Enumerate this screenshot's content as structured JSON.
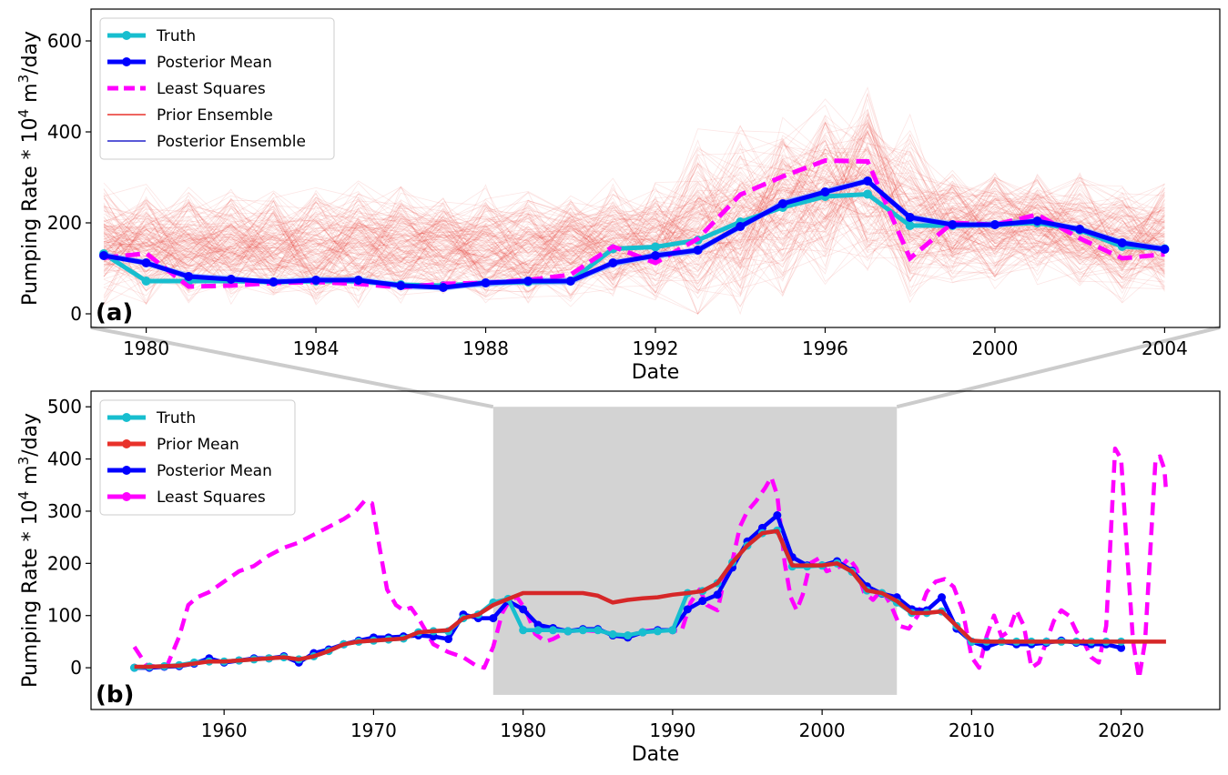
{
  "chart_data": [
    {
      "panel_label": "(a)",
      "type": "line",
      "xlabel": "Date",
      "ylabel_main": "Pumping Rate * 10",
      "ylabel_exp": "4",
      "ylabel_unit": " m",
      "ylabel_unit_exp": "3",
      "ylabel_tail": "/day",
      "xlim": [
        1978.7,
        2005.3
      ],
      "ylim": [
        -30,
        670
      ],
      "xticks": [
        1980,
        1984,
        1988,
        1992,
        1996,
        2000,
        2004
      ],
      "yticks": [
        0,
        200,
        400,
        600
      ],
      "legend": {
        "placement": "upper-left",
        "entries": [
          {
            "label": "Truth",
            "color": "#17becf",
            "style": "solid-marker",
            "width": 5
          },
          {
            "label": "Posterior Mean",
            "color": "#0000ff",
            "style": "solid-marker",
            "width": 5
          },
          {
            "label": "Least Squares",
            "color": "#ff00ff",
            "style": "dashed",
            "width": 5
          },
          {
            "label": "Prior Ensemble",
            "color": "#e8322b",
            "style": "solid",
            "width": 1.5
          },
          {
            "label": "Posterior Ensemble",
            "color": "#2222cc",
            "style": "solid",
            "width": 1.5
          }
        ]
      },
      "series": [
        {
          "name": "Truth",
          "color": "#17becf",
          "x": [
            1979,
            1980,
            1981,
            1982,
            1983,
            1984,
            1985,
            1986,
            1987,
            1988,
            1989,
            1990,
            1991,
            1992,
            1993,
            1994,
            1995,
            1996,
            1997,
            1998,
            1999,
            2000,
            2001,
            2002,
            2003,
            2004
          ],
          "y": [
            132,
            72,
            72,
            72,
            70,
            72,
            72,
            64,
            62,
            68,
            70,
            72,
            143,
            147,
            162,
            202,
            234,
            258,
            263,
            194,
            194,
            196,
            200,
            184,
            148,
            143
          ]
        },
        {
          "name": "Posterior Mean",
          "color": "#0000ff",
          "x": [
            1979,
            1980,
            1981,
            1982,
            1983,
            1984,
            1985,
            1986,
            1987,
            1988,
            1989,
            1990,
            1991,
            1992,
            1993,
            1994,
            1995,
            1996,
            1997,
            1998,
            1999,
            2000,
            2001,
            2002,
            2003,
            2004
          ],
          "y": [
            128,
            112,
            82,
            76,
            70,
            74,
            74,
            62,
            58,
            68,
            72,
            72,
            112,
            128,
            140,
            192,
            242,
            268,
            292,
            212,
            196,
            196,
            204,
            186,
            156,
            142
          ]
        },
        {
          "name": "Least Squares",
          "color": "#ff00ff",
          "x": [
            1979,
            1980,
            1981,
            1982,
            1983,
            1984,
            1985,
            1986,
            1987,
            1988,
            1989,
            1990,
            1991,
            1992,
            1993,
            1994,
            1995,
            1996,
            1997,
            1998,
            1999,
            2000,
            2001,
            2002,
            2003,
            2004
          ],
          "y": [
            123,
            133,
            60,
            62,
            68,
            70,
            66,
            58,
            66,
            68,
            74,
            86,
            148,
            112,
            165,
            262,
            302,
            337,
            335,
            122,
            200,
            196,
            218,
            166,
            122,
            131
          ]
        }
      ],
      "ensemble": {
        "prior_member_count": 160,
        "prior_spread": 80,
        "prior_center": [
          150,
          150,
          150,
          150,
          150,
          150,
          150,
          150,
          150,
          150,
          150,
          150,
          160,
          160,
          170,
          200,
          230,
          260,
          280,
          200,
          190,
          190,
          200,
          185,
          160,
          160
        ],
        "prior_color": "#e8322b",
        "posterior_color": "#7fb0ff"
      }
    },
    {
      "panel_label": "(b)",
      "type": "line",
      "xlabel": "Date",
      "ylabel_main": "Pumping Rate * 10",
      "ylabel_exp": "4",
      "ylabel_unit": " m",
      "ylabel_unit_exp": "3",
      "ylabel_tail": "/day",
      "xlim": [
        1951.1,
        2026.6
      ],
      "ylim": [
        -80,
        530
      ],
      "xticks": [
        1960,
        1970,
        1980,
        1990,
        2000,
        2010,
        2020
      ],
      "yticks": [
        0,
        100,
        200,
        300,
        400,
        500
      ],
      "highlight_region": {
        "x": [
          1978,
          2005
        ],
        "y": [
          -52,
          500
        ],
        "color": "#d3d3d3"
      },
      "legend": {
        "placement": "upper-left",
        "entries": [
          {
            "label": "Truth",
            "color": "#17becf",
            "style": "solid-marker",
            "width": 5
          },
          {
            "label": "Prior Mean",
            "color": "#e8322b",
            "style": "solid-marker",
            "width": 5
          },
          {
            "label": "Posterior Mean",
            "color": "#0000ff",
            "style": "solid-marker",
            "width": 5
          },
          {
            "label": "Least Squares",
            "color": "#ff00ff",
            "style": "solid-marker",
            "width": 5
          }
        ]
      },
      "series": [
        {
          "name": "Posterior Mean",
          "color": "#0000ff",
          "marker": true,
          "x": [
            1954,
            1955,
            1956,
            1957,
            1958,
            1959,
            1960,
            1961,
            1962,
            1963,
            1964,
            1965,
            1966,
            1967,
            1968,
            1969,
            1970,
            1971,
            1972,
            1973,
            1974,
            1975,
            1976,
            1977,
            1978,
            1979,
            1980,
            1981,
            1982,
            1983,
            1984,
            1985,
            1986,
            1987,
            1988,
            1989,
            1990,
            1991,
            1992,
            1993,
            1994,
            1995,
            1996,
            1997,
            1998,
            1999,
            2000,
            2001,
            2002,
            2003,
            2004,
            2005,
            2006,
            2007,
            2008,
            2009,
            2010,
            2011,
            2012,
            2013,
            2014,
            2015,
            2016,
            2017,
            2018,
            2019,
            2020
          ],
          "y": [
            0,
            0,
            2,
            3,
            8,
            18,
            10,
            14,
            18,
            18,
            22,
            10,
            28,
            35,
            45,
            52,
            58,
            58,
            60,
            62,
            60,
            55,
            102,
            95,
            95,
            128,
            112,
            82,
            76,
            70,
            74,
            74,
            62,
            58,
            68,
            72,
            72,
            112,
            128,
            140,
            192,
            242,
            268,
            292,
            212,
            196,
            196,
            204,
            186,
            156,
            142,
            135,
            112,
            110,
            135,
            75,
            50,
            40,
            50,
            45,
            45,
            48,
            52,
            48,
            45,
            45,
            38
          ]
        },
        {
          "name": "Truth",
          "color": "#17becf",
          "marker": true,
          "x": [
            1954,
            1955,
            1956,
            1957,
            1958,
            1959,
            1960,
            1961,
            1962,
            1963,
            1964,
            1965,
            1966,
            1967,
            1968,
            1969,
            1970,
            1971,
            1972,
            1973,
            1974,
            1975,
            1976,
            1977,
            1978,
            1979,
            1980,
            1981,
            1982,
            1983,
            1984,
            1985,
            1986,
            1987,
            1988,
            1989,
            1990,
            1991,
            1992,
            1993,
            1994,
            1995,
            1996,
            1997,
            1998,
            1999,
            2000,
            2001,
            2002,
            2003,
            2004,
            2005,
            2006,
            2007,
            2008,
            2009,
            2010,
            2011,
            2012,
            2013,
            2014,
            2015,
            2016,
            2017,
            2018,
            2019,
            2020
          ],
          "y": [
            0,
            2,
            3,
            5,
            10,
            12,
            12,
            14,
            16,
            18,
            20,
            16,
            22,
            32,
            45,
            50,
            52,
            54,
            56,
            68,
            70,
            70,
            95,
            102,
            125,
            132,
            72,
            72,
            72,
            70,
            72,
            72,
            64,
            62,
            68,
            70,
            72,
            143,
            147,
            162,
            202,
            234,
            258,
            263,
            194,
            194,
            196,
            200,
            184,
            148,
            143,
            125,
            105,
            105,
            108,
            80,
            50,
            50,
            50,
            50,
            50,
            50,
            50,
            50,
            50,
            50,
            50
          ]
        },
        {
          "name": "Prior Mean",
          "color": "#d62728",
          "marker": false,
          "x": [
            1954,
            1955,
            1956,
            1957,
            1958,
            1959,
            1960,
            1961,
            1962,
            1963,
            1964,
            1965,
            1966,
            1967,
            1968,
            1969,
            1970,
            1971,
            1972,
            1973,
            1974,
            1975,
            1976,
            1977,
            1978,
            1979,
            1980,
            1981,
            1982,
            1983,
            1984,
            1985,
            1986,
            1987,
            1988,
            1989,
            1990,
            1991,
            1992,
            1993,
            1994,
            1995,
            1996,
            1997,
            1998,
            1999,
            2000,
            2001,
            2002,
            2003,
            2004,
            2005,
            2006,
            2007,
            2008,
            2009,
            2010,
            2011,
            2012,
            2013,
            2014,
            2015,
            2016,
            2017,
            2018,
            2019,
            2020,
            2021,
            2022,
            2023
          ],
          "y": [
            2,
            2,
            3,
            4,
            8,
            12,
            12,
            14,
            16,
            18,
            20,
            16,
            22,
            32,
            45,
            50,
            52,
            54,
            56,
            68,
            70,
            72,
            95,
            102,
            120,
            132,
            143,
            143,
            143,
            143,
            143,
            138,
            125,
            130,
            133,
            135,
            140,
            143,
            147,
            162,
            202,
            234,
            258,
            262,
            196,
            196,
            196,
            200,
            184,
            148,
            143,
            128,
            105,
            105,
            108,
            80,
            52,
            50,
            50,
            50,
            50,
            50,
            50,
            50,
            50,
            50,
            50,
            50,
            50,
            50
          ]
        },
        {
          "name": "Least Squares",
          "color": "#ff00ff",
          "marker": false,
          "dashed": true,
          "x": [
            1954,
            1954.8,
            1955.5,
            1956.2,
            1957,
            1957.6,
            1958.2,
            1959,
            1960,
            1961,
            1962,
            1963,
            1964,
            1965,
            1966,
            1967,
            1968,
            1968.8,
            1969.4,
            1969.9,
            1970.4,
            1970.9,
            1971.5,
            1972,
            1972.5,
            1973,
            1973.5,
            1974,
            1975,
            1976,
            1976.8,
            1977.4,
            1978,
            1978.6,
            1979.1,
            1979.6,
            1980.2,
            1980.8,
            1981.5,
            1982,
            1983,
            1984,
            1985,
            1986,
            1987,
            1988,
            1989,
            1990,
            1990.6,
            1991.2,
            1991.8,
            1992.3,
            1993,
            1993.5,
            1994,
            1994.5,
            1995,
            1995.6,
            1996.2,
            1996.6,
            1997,
            1997.5,
            1997.9,
            1998.3,
            1998.7,
            1999.2,
            1999.8,
            2000.3,
            2000.8,
            2001.3,
            2001.8,
            2002.3,
            2002.8,
            2003.4,
            2004,
            2004.6,
            2005.2,
            2005.8,
            2006.4,
            2007,
            2007.6,
            2008.2,
            2008.8,
            2009.4,
            2010,
            2010.5,
            2011,
            2011.5,
            2012,
            2012.5,
            2013,
            2013.5,
            2014,
            2014.5,
            2015,
            2015.5,
            2016,
            2016.5,
            2017,
            2017.5,
            2018,
            2018.5,
            2019,
            2019.3,
            2019.6,
            2020,
            2020.4,
            2020.8,
            2021.2,
            2021.6,
            2022,
            2022.3,
            2022.6,
            2022.9,
            2023
          ],
          "y": [
            40,
            5,
            2,
            5,
            60,
            120,
            135,
            145,
            165,
            185,
            195,
            215,
            230,
            240,
            255,
            270,
            285,
            300,
            320,
            315,
            230,
            150,
            120,
            110,
            115,
            95,
            70,
            45,
            30,
            20,
            5,
            0,
            40,
            105,
            130,
            135,
            110,
            65,
            50,
            55,
            70,
            72,
            70,
            65,
            60,
            70,
            72,
            72,
            70,
            125,
            150,
            120,
            110,
            175,
            205,
            270,
            300,
            320,
            345,
            365,
            330,
            200,
            135,
            110,
            140,
            200,
            210,
            185,
            190,
            195,
            210,
            190,
            145,
            130,
            150,
            120,
            80,
            75,
            100,
            145,
            165,
            170,
            155,
            110,
            20,
            0,
            60,
            100,
            60,
            70,
            110,
            80,
            0,
            10,
            50,
            90,
            110,
            100,
            70,
            50,
            20,
            10,
            80,
            250,
            420,
            400,
            220,
            50,
            -20,
            50,
            250,
            400,
            405,
            380,
            340
          ]
        }
      ]
    }
  ]
}
